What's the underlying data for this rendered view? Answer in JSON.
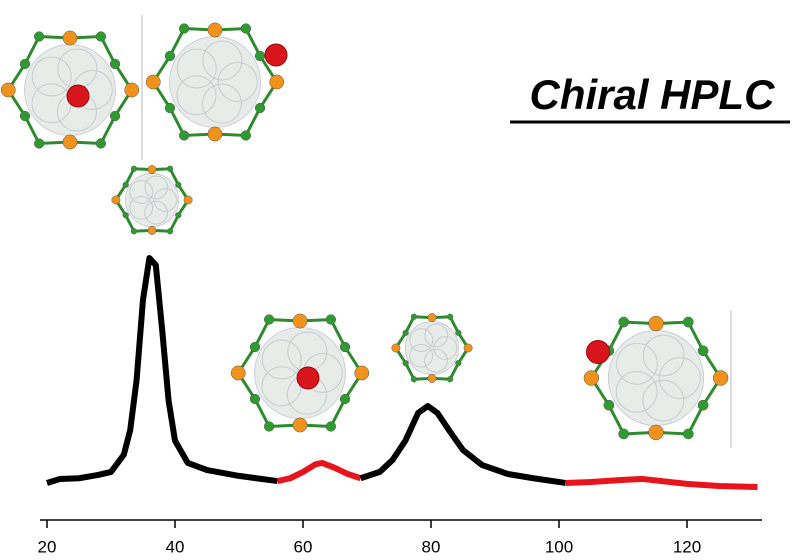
{
  "chart_data": {
    "type": "line",
    "title": "Chiral HPLC",
    "xlim": [
      20,
      131
    ],
    "ylim": [
      0,
      100
    ],
    "xticks": [
      20,
      40,
      60,
      80,
      100,
      120
    ],
    "series": [
      {
        "color": "#000000",
        "x": [
          20,
          22,
          25,
          28,
          30,
          32,
          33,
          34,
          35,
          36,
          37,
          38,
          39,
          40,
          42,
          45,
          50,
          56
        ],
        "values": [
          3,
          4.7,
          5,
          6.4,
          7.7,
          15,
          25.5,
          46.8,
          81,
          98.7,
          95.7,
          68,
          38,
          21,
          11.5,
          8.5,
          6,
          3.8
        ]
      },
      {
        "color": "#e8141c",
        "x": [
          56,
          58,
          60,
          62,
          63,
          65,
          67,
          69
        ],
        "values": [
          3.8,
          5,
          7.7,
          11,
          11.5,
          9.4,
          6.8,
          5
        ]
      },
      {
        "color": "#000000",
        "x": [
          69,
          72,
          74,
          76,
          78,
          79.5,
          81,
          83,
          85,
          88,
          92,
          96,
          101
        ],
        "values": [
          5,
          7.7,
          12.8,
          21,
          32.8,
          35.7,
          32.8,
          24.7,
          17,
          10.6,
          6.8,
          5,
          3
        ]
      },
      {
        "color": "#e8141c",
        "x": [
          101,
          105,
          110,
          113,
          116,
          120,
          125,
          131
        ],
        "values": [
          3,
          3.4,
          4.3,
          4.7,
          3.8,
          2.6,
          1.7,
          1.3
        ]
      }
    ]
  }
}
